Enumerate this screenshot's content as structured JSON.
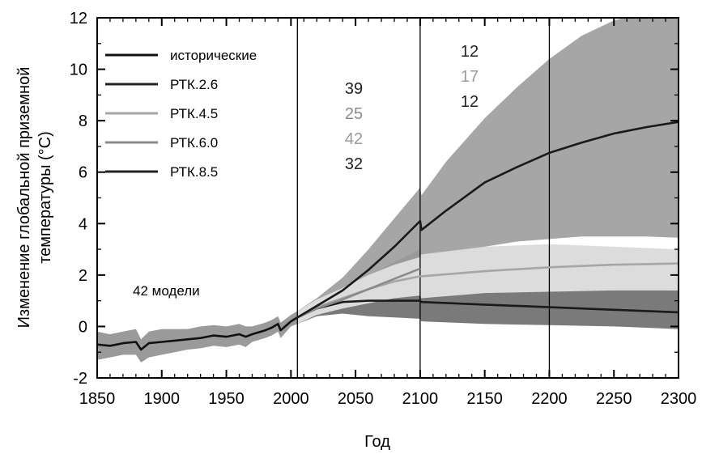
{
  "chart_data": {
    "type": "line",
    "xlabel": "Год",
    "ylabel_line1": "Изменение глобальной приземной",
    "ylabel_line2": "температуры (°C)",
    "xlim": [
      1850,
      2300
    ],
    "ylim": [
      -2,
      12
    ],
    "x_ticks": [
      1850,
      1900,
      1950,
      2000,
      2050,
      2100,
      2150,
      2200,
      2250,
      2300
    ],
    "y_ticks": [
      -2,
      0,
      2,
      4,
      6,
      8,
      10,
      12
    ],
    "vertical_lines": [
      2005,
      2100,
      2200
    ],
    "models_label": "42 модели",
    "legend": [
      {
        "name": "исторические",
        "color": "#111111"
      },
      {
        "name": "РТК.2.6",
        "color": "#222222"
      },
      {
        "name": "РТК.4.5",
        "color": "#a6a6a6"
      },
      {
        "name": "РТК.6.0",
        "color": "#8a8a8a"
      },
      {
        "name": "РТК.8.5",
        "color": "#222222"
      }
    ],
    "model_counts": {
      "period_2006_2100": [
        {
          "value": "39",
          "color": "#222222"
        },
        {
          "value": "25",
          "color": "#8c8c8c"
        },
        {
          "value": "42",
          "color": "#9a9a9a"
        },
        {
          "value": "32",
          "color": "#222222"
        }
      ],
      "period_2101_2200": [
        {
          "value": "12",
          "color": "#222222"
        },
        {
          "value": "17",
          "color": "#9a9a9a"
        },
        {
          "value": "12",
          "color": "#222222"
        }
      ]
    },
    "series": [
      {
        "name": "исторические",
        "color": "#111111",
        "x": [
          1850,
          1860,
          1870,
          1880,
          1884,
          1890,
          1900,
          1910,
          1920,
          1930,
          1940,
          1950,
          1960,
          1965,
          1970,
          1980,
          1985,
          1990,
          1992,
          2000,
          2005
        ],
        "y": [
          -0.7,
          -0.75,
          -0.65,
          -0.6,
          -0.9,
          -0.65,
          -0.6,
          -0.55,
          -0.5,
          -0.45,
          -0.35,
          -0.4,
          -0.3,
          -0.4,
          -0.3,
          -0.15,
          -0.05,
          0.1,
          -0.15,
          0.2,
          0.35
        ],
        "low": [
          -1.3,
          -1.2,
          -1.1,
          -1.1,
          -1.4,
          -1.2,
          -1.1,
          -1.0,
          -0.9,
          -0.85,
          -0.75,
          -0.8,
          -0.7,
          -0.8,
          -0.6,
          -0.45,
          -0.35,
          -0.2,
          -0.45,
          0.0,
          0.1
        ],
        "high": [
          -0.2,
          -0.3,
          -0.2,
          -0.1,
          -0.5,
          -0.2,
          -0.1,
          -0.1,
          -0.1,
          0.0,
          0.05,
          0.0,
          0.1,
          0.0,
          0.0,
          0.15,
          0.25,
          0.4,
          0.15,
          0.45,
          0.6
        ]
      },
      {
        "name": "РТК.2.6",
        "color": "#1a1a1a",
        "band_color": "#7a7a7a",
        "x": [
          2005,
          2020,
          2040,
          2060,
          2080,
          2100,
          2101,
          2150,
          2200,
          2250,
          2300
        ],
        "y": [
          0.35,
          0.7,
          0.95,
          1.0,
          1.0,
          1.0,
          0.95,
          0.85,
          0.75,
          0.65,
          0.55
        ],
        "low": [
          0.1,
          0.4,
          0.5,
          0.4,
          0.35,
          0.3,
          0.2,
          0.1,
          0.05,
          0.0,
          -0.1
        ],
        "high": [
          0.6,
          1.0,
          1.4,
          1.6,
          1.7,
          1.8,
          1.6,
          1.6,
          1.5,
          1.45,
          1.4
        ]
      },
      {
        "name": "РТК.4.5",
        "color": "#a6a6a6",
        "band_color": "#dcdcdc",
        "x": [
          2005,
          2020,
          2040,
          2060,
          2080,
          2100,
          2101,
          2150,
          2200,
          2250,
          2300
        ],
        "y": [
          0.35,
          0.75,
          1.1,
          1.45,
          1.75,
          1.95,
          1.95,
          2.15,
          2.3,
          2.4,
          2.45
        ],
        "low": [
          0.1,
          0.45,
          0.7,
          0.9,
          1.1,
          1.2,
          1.1,
          1.3,
          1.35,
          1.4,
          1.4
        ],
        "high": [
          0.6,
          1.05,
          1.5,
          2.0,
          2.4,
          2.7,
          2.8,
          3.1,
          3.2,
          3.1,
          3.0
        ]
      },
      {
        "name": "РТК.6.0",
        "color": "#8a8a8a",
        "band_color": "#9a9a9a",
        "x": [
          2005,
          2020,
          2040,
          2060,
          2080,
          2100
        ],
        "y": [
          0.35,
          0.7,
          1.05,
          1.45,
          1.85,
          2.25
        ],
        "low": [
          0.1,
          0.4,
          0.6,
          0.85,
          1.1,
          1.35
        ],
        "high": [
          0.6,
          1.0,
          1.45,
          1.95,
          2.5,
          3.0
        ]
      },
      {
        "name": "РТК.8.5",
        "color": "#1a1a1a",
        "band_color": "#a6a6a6",
        "x": [
          2005,
          2020,
          2040,
          2060,
          2080,
          2100,
          2101,
          2120,
          2150,
          2175,
          2200,
          2225,
          2250,
          2275,
          2300
        ],
        "y": [
          0.35,
          0.8,
          1.4,
          2.2,
          3.1,
          4.1,
          3.75,
          4.5,
          5.6,
          6.2,
          6.75,
          7.15,
          7.5,
          7.75,
          7.95
        ],
        "low": [
          0.1,
          0.5,
          0.9,
          1.4,
          2.0,
          2.6,
          2.5,
          2.8,
          3.1,
          3.3,
          3.4,
          3.5,
          3.5,
          3.5,
          3.45
        ],
        "high": [
          0.6,
          1.1,
          1.9,
          3.0,
          4.2,
          5.4,
          5.1,
          6.4,
          8.1,
          9.3,
          10.4,
          11.3,
          11.9,
          12.2,
          12.4
        ]
      }
    ]
  }
}
